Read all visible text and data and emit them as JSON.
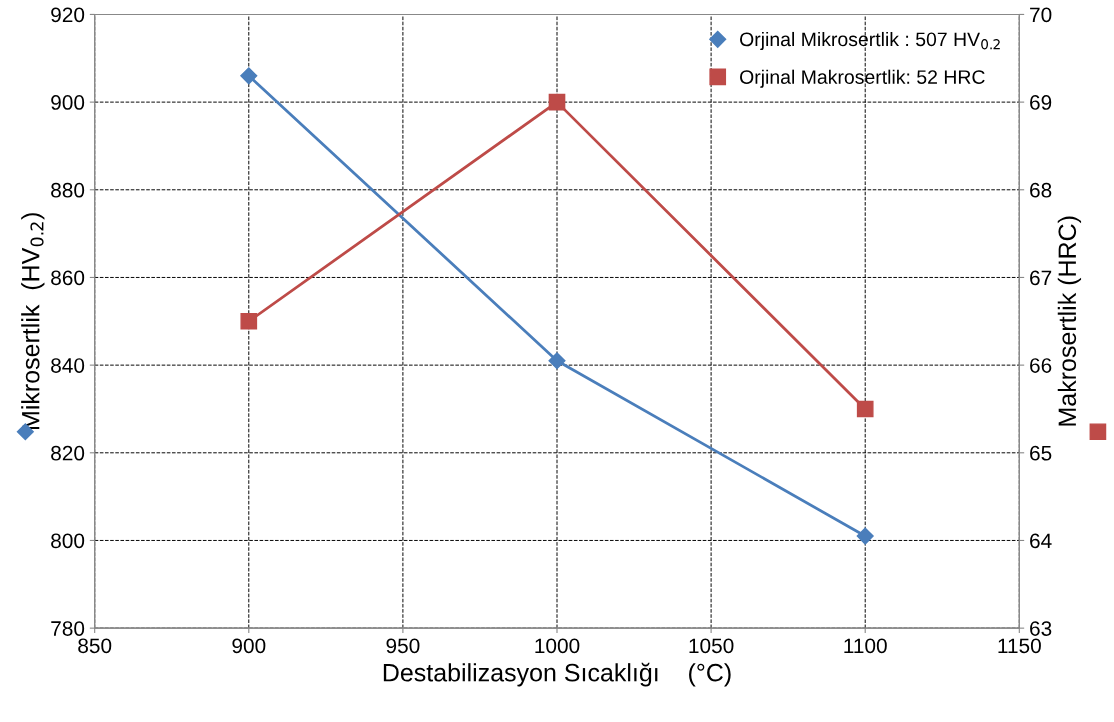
{
  "chart_data": {
    "type": "line",
    "xlabel": "Destabilizasyon Sıcaklığı    (°C)",
    "ylabel": "Mikrosertlik  (HV$_{0.2}$)",
    "y2label": "Makrosertlik (HRC)",
    "x": [
      900,
      1000,
      1100
    ],
    "series": [
      {
        "name": "Orjinal Mikrosertlik : 507 HV$_{0.2}$",
        "color": "#4a7ebb",
        "values": [
          906,
          841,
          801
        ],
        "marker": "diamond"
      },
      {
        "name": "Orjinal Makrosertlik: 52 HRC",
        "color": "#be4b48",
        "values": [
          66.5,
          69,
          65.5
        ],
        "marker": "square",
        "axis": "y2"
      }
    ],
    "xlim": [
      850,
      1150
    ],
    "xticks": [
      850,
      900,
      950,
      1000,
      1050,
      1100,
      1150
    ],
    "ylim": [
      780,
      920
    ],
    "yticks": [
      780,
      800,
      820,
      840,
      860,
      880,
      900,
      920
    ],
    "y2lim": [
      63,
      70
    ],
    "y2ticks": [
      63,
      64,
      65,
      66,
      67,
      68,
      69,
      70
    ],
    "grid": true,
    "legend": "top right",
    "line_style": "solid"
  }
}
